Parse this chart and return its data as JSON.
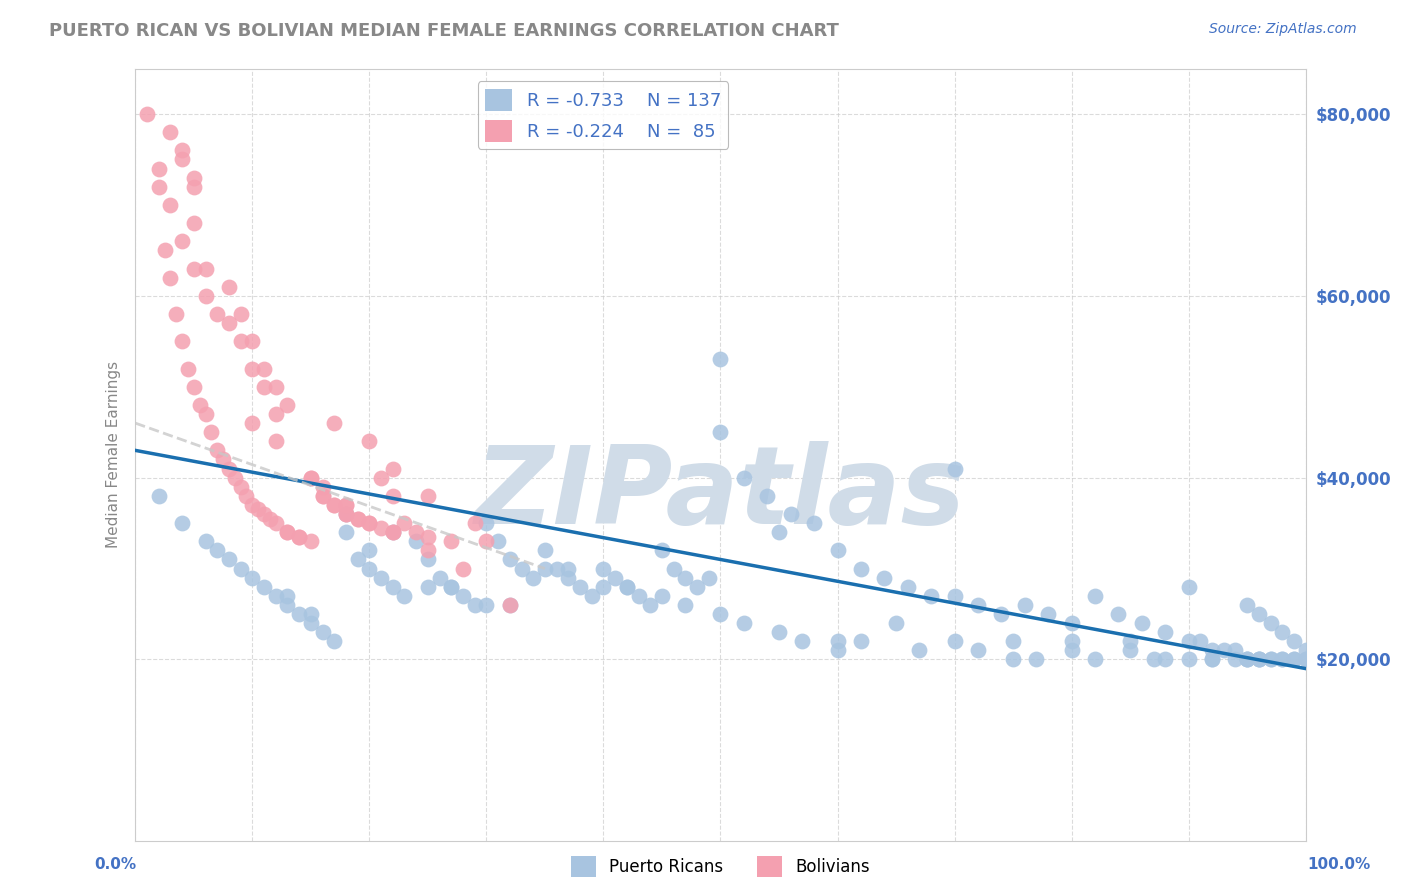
{
  "title": "PUERTO RICAN VS BOLIVIAN MEDIAN FEMALE EARNINGS CORRELATION CHART",
  "source_text": "Source: ZipAtlas.com",
  "ylabel": "Median Female Earnings",
  "yaxis_labels": [
    "$20,000",
    "$40,000",
    "$60,000",
    "$80,000"
  ],
  "yaxis_values": [
    20000,
    40000,
    60000,
    80000
  ],
  "ylim": [
    0,
    85000
  ],
  "xlim": [
    0.0,
    1.0
  ],
  "legend_blue_r": "R = -0.733",
  "legend_blue_n": "N = 137",
  "legend_pink_r": "R = -0.224",
  "legend_pink_n": "N =  85",
  "blue_color": "#a8c4e0",
  "pink_color": "#f4a0b0",
  "blue_line_color": "#1a6faf",
  "pink_line_color": "#c8c8c8",
  "bg_color": "#ffffff",
  "grid_color": "#cccccc",
  "axis_label_color": "#4472c4",
  "watermark_color": "#d0dce8",
  "watermark_text": "ZIPatlas",
  "blue_scatter_x": [
    0.02,
    0.04,
    0.06,
    0.07,
    0.08,
    0.09,
    0.1,
    0.11,
    0.12,
    0.13,
    0.14,
    0.15,
    0.16,
    0.17,
    0.18,
    0.19,
    0.2,
    0.21,
    0.22,
    0.23,
    0.24,
    0.25,
    0.26,
    0.27,
    0.28,
    0.29,
    0.3,
    0.31,
    0.32,
    0.33,
    0.34,
    0.35,
    0.36,
    0.37,
    0.38,
    0.39,
    0.4,
    0.41,
    0.42,
    0.43,
    0.44,
    0.45,
    0.46,
    0.47,
    0.48,
    0.49,
    0.5,
    0.52,
    0.54,
    0.56,
    0.58,
    0.6,
    0.62,
    0.64,
    0.66,
    0.68,
    0.7,
    0.72,
    0.74,
    0.76,
    0.78,
    0.8,
    0.82,
    0.84,
    0.86,
    0.88,
    0.9,
    0.91,
    0.92,
    0.93,
    0.94,
    0.95,
    0.96,
    0.97,
    0.98,
    0.99,
    1.0,
    0.5,
    0.55,
    0.7,
    0.2,
    0.25,
    0.3,
    0.35,
    0.4,
    0.45,
    0.5,
    0.55,
    0.6,
    0.65,
    0.7,
    0.75,
    0.8,
    0.85,
    0.9,
    0.95,
    0.96,
    0.97,
    0.98,
    0.99,
    1.0,
    0.85,
    0.6,
    0.75,
    0.8,
    0.9,
    0.95,
    0.96,
    0.97,
    0.98,
    0.99,
    1.0,
    0.88,
    0.92,
    0.94,
    0.95,
    0.96,
    0.18,
    0.13,
    0.15,
    0.22,
    0.27,
    0.32,
    0.37,
    0.42,
    0.47,
    0.52,
    0.57,
    0.62,
    0.67,
    0.72,
    0.77,
    0.82,
    0.87,
    0.92
  ],
  "blue_scatter_y": [
    38000,
    35000,
    33000,
    32000,
    31000,
    30000,
    29000,
    28000,
    27000,
    26000,
    25000,
    24000,
    23000,
    22000,
    34000,
    31000,
    30000,
    29000,
    28000,
    27000,
    33000,
    31000,
    29000,
    28000,
    27000,
    26000,
    35000,
    33000,
    31000,
    30000,
    29000,
    32000,
    30000,
    29000,
    28000,
    27000,
    30000,
    29000,
    28000,
    27000,
    26000,
    32000,
    30000,
    29000,
    28000,
    29000,
    53000,
    40000,
    38000,
    36000,
    35000,
    32000,
    30000,
    29000,
    28000,
    27000,
    27000,
    26000,
    25000,
    26000,
    25000,
    24000,
    27000,
    25000,
    24000,
    23000,
    22000,
    22000,
    21000,
    21000,
    20000,
    20000,
    20000,
    20000,
    20000,
    20000,
    20000,
    45000,
    34000,
    41000,
    32000,
    28000,
    26000,
    30000,
    28000,
    27000,
    25000,
    23000,
    22000,
    24000,
    22000,
    22000,
    21000,
    21000,
    20000,
    20000,
    20000,
    20000,
    20000,
    20000,
    20000,
    22000,
    21000,
    20000,
    22000,
    28000,
    26000,
    25000,
    24000,
    23000,
    22000,
    21000,
    20000,
    20000,
    21000,
    20000,
    20000,
    36000,
    27000,
    25000,
    34000,
    28000,
    26000,
    30000,
    28000,
    26000,
    24000,
    22000,
    22000,
    21000,
    21000,
    20000,
    20000,
    20000,
    20000
  ],
  "pink_scatter_x": [
    0.01,
    0.02,
    0.025,
    0.03,
    0.035,
    0.04,
    0.045,
    0.05,
    0.055,
    0.06,
    0.065,
    0.07,
    0.075,
    0.08,
    0.085,
    0.09,
    0.095,
    0.1,
    0.105,
    0.11,
    0.115,
    0.12,
    0.13,
    0.14,
    0.15,
    0.16,
    0.17,
    0.18,
    0.19,
    0.2,
    0.21,
    0.22,
    0.13,
    0.14,
    0.15,
    0.16,
    0.17,
    0.18,
    0.19,
    0.2,
    0.21,
    0.22,
    0.23,
    0.24,
    0.25,
    0.27,
    0.3,
    0.17,
    0.2,
    0.22,
    0.25,
    0.29,
    0.32,
    0.08,
    0.09,
    0.1,
    0.11,
    0.12,
    0.13,
    0.05,
    0.06,
    0.07,
    0.08,
    0.09,
    0.1,
    0.11,
    0.12,
    0.02,
    0.03,
    0.04,
    0.05,
    0.06,
    0.04,
    0.05,
    0.03,
    0.04,
    0.05,
    0.1,
    0.12,
    0.15,
    0.18,
    0.22,
    0.25,
    0.28,
    0.16,
    0.18
  ],
  "pink_scatter_y": [
    80000,
    72000,
    65000,
    62000,
    58000,
    55000,
    52000,
    50000,
    48000,
    47000,
    45000,
    43000,
    42000,
    41000,
    40000,
    39000,
    38000,
    37000,
    36500,
    36000,
    35500,
    35000,
    34000,
    33500,
    40000,
    38000,
    37000,
    36000,
    35500,
    35000,
    34500,
    34000,
    34000,
    33500,
    33000,
    38000,
    37000,
    36000,
    35500,
    35000,
    40000,
    38000,
    35000,
    34000,
    33500,
    33000,
    33000,
    46000,
    44000,
    41000,
    38000,
    35000,
    26000,
    61000,
    58000,
    55000,
    52000,
    50000,
    48000,
    68000,
    63000,
    58000,
    57000,
    55000,
    52000,
    50000,
    47000,
    74000,
    70000,
    66000,
    63000,
    60000,
    75000,
    72000,
    78000,
    76000,
    73000,
    46000,
    44000,
    40000,
    37000,
    34000,
    32000,
    30000,
    39000,
    37000
  ],
  "blue_trendline_x": [
    0.0,
    1.0
  ],
  "blue_trendline_y": [
    43000,
    19000
  ],
  "pink_trendline_x": [
    0.0,
    0.35
  ],
  "pink_trendline_y": [
    46000,
    30000
  ]
}
